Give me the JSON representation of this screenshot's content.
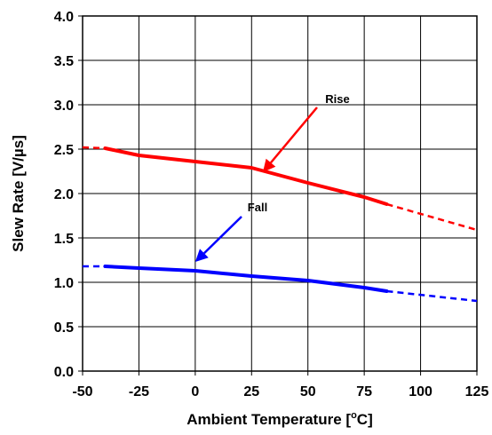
{
  "chart_data": {
    "type": "line",
    "title": "",
    "xlabel": "Ambient Temperature [",
    "xlabel_super": "o",
    "xlabel_suffix": "C]",
    "ylabel": "Slew Rate [V/µs]",
    "xlim": [
      -50,
      125
    ],
    "ylim": [
      0,
      4
    ],
    "grid": true,
    "x_ticks": [
      "-50",
      "-25",
      "0",
      "25",
      "50",
      "75",
      "100",
      "125"
    ],
    "y_ticks": [
      "0.0",
      "0.5",
      "1.0",
      "1.5",
      "2.0",
      "2.5",
      "3.0",
      "3.5",
      "4.0"
    ],
    "series": [
      {
        "name": "Rise",
        "color": "#ff0000",
        "solid": {
          "x": [
            -40,
            -25,
            0,
            25,
            50,
            75,
            85
          ],
          "y": [
            2.51,
            2.43,
            2.36,
            2.29,
            2.12,
            1.96,
            1.88
          ]
        },
        "dashed_left": {
          "x": [
            -50,
            -40
          ],
          "y": [
            2.52,
            2.51
          ]
        },
        "dashed_right": {
          "x": [
            85,
            125
          ],
          "y": [
            1.88,
            1.59
          ]
        }
      },
      {
        "name": "Fall",
        "color": "#0000ff",
        "solid": {
          "x": [
            -40,
            -25,
            0,
            25,
            50,
            75,
            85
          ],
          "y": [
            1.18,
            1.16,
            1.13,
            1.07,
            1.02,
            0.94,
            0.9
          ]
        },
        "dashed_left": {
          "x": [
            -50,
            -40
          ],
          "y": [
            1.18,
            1.18
          ]
        },
        "dashed_right": {
          "x": [
            85,
            125
          ],
          "y": [
            0.9,
            0.79
          ]
        }
      }
    ],
    "annotations": [
      {
        "text": "Rise",
        "series": "Rise",
        "arrow_to": [
          30,
          2.24
        ],
        "color": "#ff0000"
      },
      {
        "text": "Fall",
        "series": "Fall",
        "arrow_to": [
          0,
          1.23
        ],
        "color": "#0000ff"
      }
    ]
  }
}
